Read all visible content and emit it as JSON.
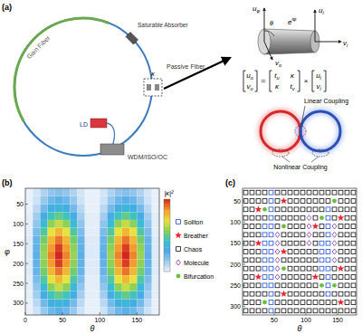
{
  "panel_labels": [
    "(a)",
    "(b)",
    "(c)"
  ],
  "diagram": {
    "gain_fiber": "Gain Fiber",
    "saturable_absorber": "Saturable Absorber",
    "passive_fiber": "Passive Fiber",
    "coupler": "κ",
    "ld": "LD",
    "wdm": "WDM/ISO/OC",
    "angle": "θ",
    "phase": {
      "base": "e",
      "sup": "iφ"
    },
    "axes": {
      "u_phi": {
        "base": "u",
        "sub": "φ"
      },
      "u_i": {
        "base": "u",
        "sub": "i"
      },
      "v_i": {
        "base": "v",
        "sub": "i"
      },
      "v_o": {
        "base": "v",
        "sub": "o"
      }
    },
    "equation": {
      "lhs": [
        {
          "base": "u",
          "sub": "o"
        },
        {
          "base": "v",
          "sub": "o"
        }
      ],
      "equals": "=",
      "matrix": [
        [
          {
            "base": "t",
            "sub": "u"
          },
          {
            "base": "κ"
          }
        ],
        [
          {
            "base": "κ"
          },
          {
            "base": "t",
            "sub": "v"
          }
        ]
      ],
      "operator": "×",
      "rhs": [
        {
          "base": "u",
          "sub": "i"
        },
        {
          "base": "v",
          "sub": "i"
        }
      ]
    },
    "linear_coupling": "Linear Coupling",
    "nonlinear_coupling": "Nonlinear Coupling"
  },
  "chart_data": [
    {
      "type": "heatmap",
      "x_label": "θ",
      "y_label": "φ",
      "x": [
        5,
        15,
        25,
        35,
        45,
        55,
        65,
        75,
        85,
        95,
        105,
        115,
        125,
        135,
        145,
        155,
        165,
        175
      ],
      "y": [
        20,
        40,
        60,
        80,
        100,
        120,
        140,
        160,
        180,
        200,
        220,
        240,
        260,
        280,
        300,
        320
      ],
      "values": [
        [
          0.01,
          0.05,
          0.11,
          0.16,
          0.18,
          0.16,
          0.11,
          0.05,
          0.01,
          0.01,
          0.05,
          0.11,
          0.16,
          0.18,
          0.16,
          0.11,
          0.05,
          0.01
        ],
        [
          0.01,
          0.06,
          0.15,
          0.22,
          0.25,
          0.22,
          0.15,
          0.06,
          0.01,
          0.01,
          0.06,
          0.15,
          0.22,
          0.25,
          0.22,
          0.15,
          0.06,
          0.01
        ],
        [
          0.01,
          0.09,
          0.21,
          0.32,
          0.36,
          0.32,
          0.21,
          0.09,
          0.01,
          0.01,
          0.09,
          0.21,
          0.32,
          0.36,
          0.32,
          0.21,
          0.09,
          0.01
        ],
        [
          0.02,
          0.13,
          0.3,
          0.44,
          0.5,
          0.44,
          0.3,
          0.13,
          0.02,
          0.02,
          0.13,
          0.3,
          0.44,
          0.5,
          0.44,
          0.3,
          0.13,
          0.02
        ],
        [
          0.02,
          0.16,
          0.38,
          0.57,
          0.65,
          0.57,
          0.38,
          0.16,
          0.02,
          0.02,
          0.16,
          0.38,
          0.57,
          0.65,
          0.57,
          0.38,
          0.16,
          0.02
        ],
        [
          0.02,
          0.2,
          0.47,
          0.7,
          0.79,
          0.7,
          0.47,
          0.2,
          0.02,
          0.02,
          0.2,
          0.47,
          0.7,
          0.79,
          0.7,
          0.47,
          0.2,
          0.02
        ],
        [
          0.03,
          0.23,
          0.53,
          0.79,
          0.9,
          0.79,
          0.53,
          0.23,
          0.03,
          0.03,
          0.23,
          0.53,
          0.79,
          0.9,
          0.79,
          0.53,
          0.23,
          0.03
        ],
        [
          0.03,
          0.24,
          0.57,
          0.85,
          0.97,
          0.85,
          0.57,
          0.24,
          0.03,
          0.03,
          0.24,
          0.57,
          0.85,
          0.97,
          0.85,
          0.57,
          0.24,
          0.03
        ],
        [
          0.03,
          0.25,
          0.59,
          0.88,
          1,
          0.88,
          0.59,
          0.25,
          0.03,
          0.03,
          0.25,
          0.59,
          0.88,
          1,
          0.88,
          0.59,
          0.25,
          0.03
        ],
        [
          0.03,
          0.24,
          0.57,
          0.85,
          0.97,
          0.85,
          0.57,
          0.24,
          0.03,
          0.03,
          0.24,
          0.57,
          0.85,
          0.97,
          0.85,
          0.57,
          0.24,
          0.03
        ],
        [
          0.03,
          0.23,
          0.53,
          0.79,
          0.9,
          0.79,
          0.53,
          0.23,
          0.03,
          0.03,
          0.23,
          0.53,
          0.79,
          0.9,
          0.79,
          0.53,
          0.23,
          0.03
        ],
        [
          0.02,
          0.2,
          0.47,
          0.7,
          0.79,
          0.7,
          0.47,
          0.2,
          0.02,
          0.02,
          0.2,
          0.47,
          0.7,
          0.79,
          0.7,
          0.47,
          0.2,
          0.02
        ],
        [
          0.02,
          0.16,
          0.38,
          0.57,
          0.65,
          0.57,
          0.38,
          0.16,
          0.02,
          0.02,
          0.16,
          0.38,
          0.57,
          0.65,
          0.57,
          0.38,
          0.16,
          0.02
        ],
        [
          0.02,
          0.13,
          0.3,
          0.44,
          0.5,
          0.44,
          0.3,
          0.13,
          0.02,
          0.02,
          0.13,
          0.3,
          0.44,
          0.5,
          0.44,
          0.3,
          0.13,
          0.02
        ],
        [
          0.01,
          0.09,
          0.21,
          0.32,
          0.36,
          0.32,
          0.21,
          0.09,
          0.01,
          0.01,
          0.09,
          0.21,
          0.32,
          0.36,
          0.32,
          0.21,
          0.09,
          0.01
        ],
        [
          0.01,
          0.06,
          0.15,
          0.22,
          0.25,
          0.22,
          0.15,
          0.06,
          0.01,
          0.01,
          0.06,
          0.15,
          0.22,
          0.25,
          0.22,
          0.15,
          0.06,
          0.01
        ]
      ],
      "xlim": [
        0,
        180
      ],
      "ylim": [
        10,
        330
      ],
      "xticks": [
        0,
        50,
        100,
        150
      ],
      "yticks": [
        50,
        100,
        150,
        200,
        250,
        300
      ],
      "colorbar_label": "|κ|²",
      "colorbar_range": [
        0,
        1
      ]
    },
    {
      "type": "scatter",
      "x_label": "θ",
      "xlim": [
        0,
        180
      ],
      "ylim": [
        20,
        320
      ],
      "xticks": [
        50,
        100,
        150
      ],
      "yticks": [
        50,
        100,
        150,
        200,
        250,
        300
      ],
      "legend": "left",
      "series": [
        {
          "name": "Soliton",
          "color": "#1f4fd1",
          "marker": "square",
          "x": [
            35,
            35,
            35,
            35,
            35,
            35,
            35,
            35,
            45,
            45,
            45,
            45,
            45,
            45,
            45,
            45,
            45,
            45,
            45,
            45,
            45,
            45,
            45,
            125,
            125,
            125,
            125,
            135,
            135,
            135,
            135,
            135,
            135,
            135,
            135,
            135,
            135,
            135
          ],
          "y": [
            110,
            130,
            150,
            170,
            190,
            210,
            230,
            250,
            30,
            50,
            70,
            90,
            110,
            130,
            150,
            170,
            190,
            210,
            230,
            250,
            270,
            290,
            310,
            150,
            170,
            190,
            210,
            70,
            90,
            110,
            130,
            150,
            170,
            190,
            210,
            230,
            250,
            270
          ]
        },
        {
          "name": "Breather",
          "color": "#e3262b",
          "marker": "star",
          "x": [
            25,
            25,
            25,
            65,
            65,
            65,
            115,
            115,
            155,
            155,
            155
          ],
          "y": [
            70,
            150,
            230,
            50,
            170,
            270,
            110,
            230,
            90,
            210,
            290
          ]
        },
        {
          "name": "Chaos",
          "color": "#111111",
          "marker": "square",
          "x": [
            5,
            5,
            5,
            5,
            5,
            5,
            5,
            5,
            5,
            5,
            5,
            5,
            5,
            5,
            5,
            15,
            15,
            15,
            15,
            15,
            15,
            15,
            15,
            15,
            15,
            15,
            15,
            15,
            15,
            15,
            25,
            25,
            25,
            25,
            25,
            25,
            25,
            25,
            25,
            25,
            25,
            25,
            35,
            35,
            35,
            35,
            35,
            55,
            55,
            55,
            55,
            55,
            55,
            55,
            55,
            55,
            65,
            65,
            65,
            65,
            65,
            65,
            65,
            65,
            65,
            65,
            75,
            75,
            75,
            75,
            75,
            75,
            75,
            75,
            75,
            75,
            75,
            75,
            75,
            75,
            75,
            85,
            85,
            85,
            85,
            85,
            85,
            85,
            85,
            85,
            85,
            85,
            85,
            85,
            85,
            85,
            95,
            95,
            95,
            95,
            95,
            95,
            95,
            95,
            95,
            95,
            95,
            95,
            95,
            95,
            95,
            105,
            105,
            105,
            105,
            105,
            105,
            105,
            105,
            105,
            105,
            105,
            115,
            115,
            115,
            115,
            115,
            115,
            115,
            115,
            115,
            115,
            115,
            115,
            115,
            125,
            125,
            125,
            125,
            125,
            125,
            125,
            125,
            125,
            135,
            135,
            135,
            135,
            145,
            145,
            145,
            145,
            145,
            145,
            145,
            145,
            155,
            155,
            155,
            155,
            155,
            155,
            155,
            155,
            155,
            155,
            155,
            155,
            165,
            165,
            165,
            165,
            165,
            165,
            165,
            165,
            165,
            165,
            165,
            165,
            165,
            165,
            165,
            175,
            175,
            175,
            175,
            175,
            175,
            175,
            175,
            175,
            175,
            175,
            175,
            175,
            175,
            175
          ],
          "y": [
            30,
            50,
            70,
            90,
            110,
            130,
            150,
            170,
            190,
            210,
            230,
            250,
            270,
            290,
            310,
            30,
            50,
            70,
            90,
            110,
            130,
            150,
            170,
            190,
            210,
            230,
            250,
            270,
            290,
            310,
            30,
            50,
            90,
            110,
            130,
            170,
            190,
            210,
            250,
            270,
            290,
            310,
            30,
            50,
            90,
            270,
            310,
            30,
            50,
            70,
            90,
            110,
            250,
            270,
            290,
            310,
            30,
            70,
            90,
            130,
            150,
            190,
            230,
            250,
            290,
            310,
            30,
            50,
            70,
            90,
            110,
            130,
            150,
            170,
            190,
            210,
            230,
            250,
            270,
            290,
            310,
            30,
            50,
            70,
            90,
            110,
            130,
            150,
            170,
            190,
            210,
            230,
            250,
            270,
            290,
            310,
            30,
            50,
            70,
            90,
            110,
            130,
            150,
            170,
            190,
            210,
            230,
            250,
            270,
            290,
            310,
            30,
            50,
            70,
            170,
            190,
            210,
            230,
            250,
            270,
            290,
            310,
            30,
            50,
            70,
            90,
            130,
            150,
            170,
            190,
            210,
            250,
            270,
            290,
            310,
            30,
            50,
            70,
            110,
            130,
            230,
            270,
            290,
            310,
            30,
            50,
            290,
            310,
            30,
            70,
            90,
            210,
            230,
            270,
            290,
            310,
            30,
            50,
            70,
            110,
            130,
            150,
            170,
            190,
            230,
            250,
            270,
            310,
            30,
            50,
            70,
            90,
            110,
            130,
            150,
            170,
            190,
            210,
            230,
            250,
            270,
            290,
            310,
            30,
            50,
            70,
            90,
            110,
            130,
            150,
            170,
            190,
            210,
            230,
            250,
            270,
            290,
            310
          ]
        },
        {
          "name": "Molecule",
          "color": "#7b2d9e",
          "marker": "diamond",
          "x": [
            55,
            55,
            55,
            55,
            55,
            55,
            105,
            105,
            105,
            105,
            145,
            145,
            145,
            145,
            145
          ],
          "y": [
            130,
            150,
            170,
            190,
            210,
            230,
            90,
            110,
            130,
            150,
            110,
            130,
            150,
            170,
            190
          ]
        },
        {
          "name": "Bifurcation",
          "color": "#6abf3c",
          "marker": "circle",
          "x": [
            35,
            35,
            65,
            65,
            125,
            125,
            145,
            145
          ],
          "y": [
            70,
            290,
            110,
            210,
            90,
            250,
            50,
            250
          ]
        }
      ]
    }
  ]
}
